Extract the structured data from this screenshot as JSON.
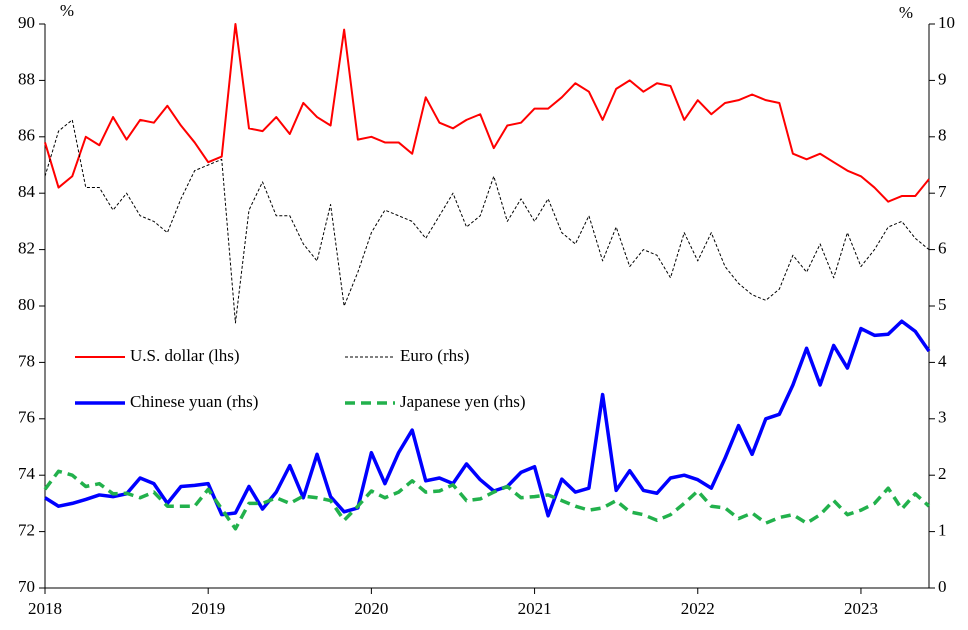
{
  "chart_data": {
    "type": "line",
    "y_unit_label": "%",
    "y2_unit_label": "%",
    "x": [
      2018,
      2018.083,
      2018.167,
      2018.25,
      2018.333,
      2018.417,
      2018.5,
      2018.583,
      2018.667,
      2018.75,
      2018.833,
      2018.917,
      2019,
      2019.083,
      2019.167,
      2019.25,
      2019.333,
      2019.417,
      2019.5,
      2019.583,
      2019.667,
      2019.75,
      2019.833,
      2019.917,
      2020,
      2020.083,
      2020.167,
      2020.25,
      2020.333,
      2020.417,
      2020.5,
      2020.583,
      2020.667,
      2020.75,
      2020.833,
      2020.917,
      2021,
      2021.083,
      2021.167,
      2021.25,
      2021.333,
      2021.417,
      2021.5,
      2021.583,
      2021.667,
      2021.75,
      2021.833,
      2021.917,
      2022,
      2022.083,
      2022.167,
      2022.25,
      2022.333,
      2022.417,
      2022.5,
      2022.583,
      2022.667,
      2022.75,
      2022.833,
      2022.917,
      2023,
      2023.083,
      2023.167,
      2023.25,
      2023.333,
      2023.417
    ],
    "xlim": [
      2018,
      2023.417
    ],
    "xticks": [
      2018,
      2019,
      2020,
      2021,
      2022,
      2023
    ],
    "ylim": [
      70,
      90
    ],
    "yticks": [
      70,
      72,
      74,
      76,
      78,
      80,
      82,
      84,
      86,
      88,
      90
    ],
    "y2lim": [
      0,
      10
    ],
    "y2ticks": [
      0,
      1,
      2,
      3,
      4,
      5,
      6,
      7,
      8,
      9,
      10
    ],
    "legend": "left",
    "series": [
      {
        "name": "U.S. dollar (lhs)",
        "color": "#ff0000",
        "width": 2,
        "dash": "solid",
        "axis": "y",
        "values": [
          85.8,
          84.2,
          84.6,
          86.0,
          85.7,
          86.7,
          85.9,
          86.6,
          86.5,
          87.1,
          86.4,
          85.8,
          85.1,
          85.3,
          90.0,
          86.3,
          86.2,
          86.7,
          86.1,
          87.2,
          86.7,
          86.4,
          89.8,
          85.9,
          86.0,
          85.8,
          85.8,
          85.4,
          87.4,
          86.5,
          86.3,
          86.6,
          86.8,
          85.6,
          86.4,
          86.5,
          87.0,
          87.0,
          87.4,
          87.9,
          87.6,
          86.6,
          87.7,
          88.0,
          87.6,
          87.9,
          87.8,
          86.6,
          87.3,
          86.8,
          87.2,
          87.3,
          87.5,
          87.3,
          87.2,
          85.4,
          85.2,
          85.4,
          85.1,
          84.8,
          84.6,
          84.2,
          83.7,
          83.9,
          83.9,
          84.5
        ]
      },
      {
        "name": "Euro (rhs)",
        "color": "#000000",
        "width": 1,
        "dash": "dotted",
        "axis": "y2",
        "values": [
          7.3,
          8.1,
          8.3,
          7.1,
          7.1,
          6.7,
          7.0,
          6.6,
          6.5,
          6.3,
          6.9,
          7.4,
          7.5,
          7.6,
          4.7,
          6.7,
          7.2,
          6.6,
          6.6,
          6.1,
          5.8,
          6.8,
          5.0,
          5.6,
          6.3,
          6.7,
          6.6,
          6.5,
          6.2,
          6.6,
          7.0,
          6.4,
          6.6,
          7.3,
          6.5,
          6.9,
          6.5,
          6.9,
          6.3,
          6.1,
          6.6,
          5.8,
          6.4,
          5.7,
          6.0,
          5.9,
          5.5,
          6.3,
          5.8,
          6.3,
          5.7,
          5.4,
          5.2,
          5.1,
          5.3,
          5.9,
          5.6,
          6.1,
          5.5,
          6.3,
          5.7,
          6.0,
          6.4,
          6.5,
          6.2,
          6.0
        ]
      },
      {
        "name": "Chinese yuan (rhs)",
        "color": "#0000ff",
        "width": 3.5,
        "dash": "solid",
        "axis": "y2",
        "values": [
          1.6,
          1.45,
          1.5,
          1.57,
          1.65,
          1.62,
          1.67,
          1.95,
          1.85,
          1.5,
          1.8,
          1.82,
          1.85,
          1.3,
          1.33,
          1.8,
          1.4,
          1.7,
          2.17,
          1.6,
          2.37,
          1.62,
          1.35,
          1.42,
          2.4,
          1.85,
          2.4,
          2.8,
          1.9,
          1.95,
          1.85,
          2.2,
          1.92,
          1.72,
          1.8,
          2.05,
          2.15,
          1.28,
          1.93,
          1.7,
          1.77,
          3.43,
          1.73,
          2.08,
          1.73,
          1.68,
          1.95,
          2.0,
          1.92,
          1.77,
          2.3,
          2.88,
          2.37,
          3.0,
          3.08,
          3.6,
          4.25,
          3.6,
          4.3,
          3.9,
          4.6,
          4.48,
          4.5,
          4.73,
          4.55,
          4.2
        ]
      },
      {
        "name": "Japanese yen (rhs)",
        "color": "#22b14c",
        "width": 3.5,
        "dash": "dashed",
        "axis": "y2",
        "values": [
          1.75,
          2.07,
          2.0,
          1.8,
          1.85,
          1.67,
          1.68,
          1.6,
          1.7,
          1.45,
          1.45,
          1.45,
          1.75,
          1.4,
          1.05,
          1.5,
          1.5,
          1.6,
          1.5,
          1.63,
          1.6,
          1.55,
          1.2,
          1.45,
          1.72,
          1.6,
          1.7,
          1.9,
          1.7,
          1.72,
          1.83,
          1.55,
          1.58,
          1.7,
          1.8,
          1.6,
          1.62,
          1.65,
          1.55,
          1.45,
          1.38,
          1.42,
          1.55,
          1.35,
          1.3,
          1.2,
          1.3,
          1.5,
          1.72,
          1.45,
          1.42,
          1.23,
          1.33,
          1.15,
          1.25,
          1.3,
          1.15,
          1.3,
          1.55,
          1.3,
          1.38,
          1.5,
          1.77,
          1.4,
          1.67,
          1.45
        ]
      }
    ]
  }
}
